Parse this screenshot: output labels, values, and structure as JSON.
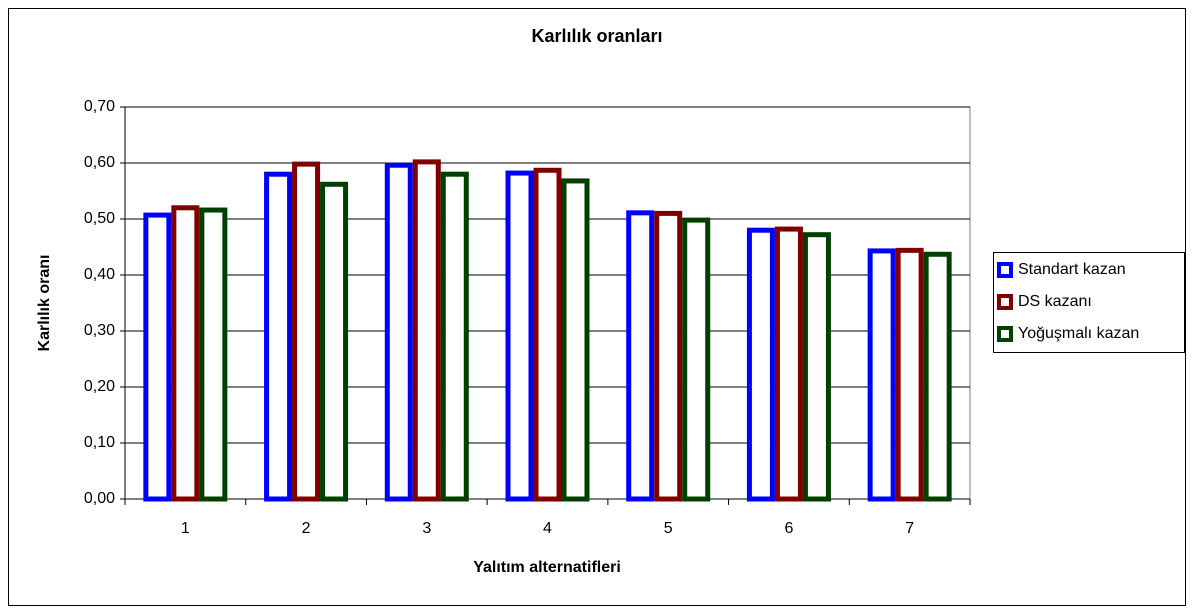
{
  "chart_data": {
    "type": "bar",
    "title": "Karlılık oranları",
    "x_label": "Yalıtım alternatifleri",
    "y_label": "Karlılık oranı",
    "categories": [
      "1",
      "2",
      "3",
      "4",
      "5",
      "6",
      "7"
    ],
    "series": [
      {
        "name": "Standart kazan",
        "color": "#0000ff",
        "values": [
          0.507,
          0.58,
          0.596,
          0.582,
          0.511,
          0.48,
          0.443
        ]
      },
      {
        "name": "DS kazanı",
        "color": "#800000",
        "values": [
          0.52,
          0.598,
          0.602,
          0.587,
          0.51,
          0.482,
          0.444
        ]
      },
      {
        "name": "Yoğuşmalı kazan",
        "color": "#004000",
        "values": [
          0.516,
          0.562,
          0.58,
          0.568,
          0.498,
          0.472,
          0.437
        ]
      }
    ],
    "ylim": [
      0,
      0.7
    ],
    "yticks": [
      {
        "value": 0,
        "label": "0,00"
      },
      {
        "value": 0.1,
        "label": "0,10"
      },
      {
        "value": 0.2,
        "label": "0,20"
      },
      {
        "value": 0.3,
        "label": "0,30"
      },
      {
        "value": 0.4,
        "label": "0,40"
      },
      {
        "value": 0.5,
        "label": "0,50"
      },
      {
        "value": 0.6,
        "label": "0,60"
      },
      {
        "value": 0.7,
        "label": "0,70"
      }
    ],
    "grid": true,
    "legend": "right"
  }
}
